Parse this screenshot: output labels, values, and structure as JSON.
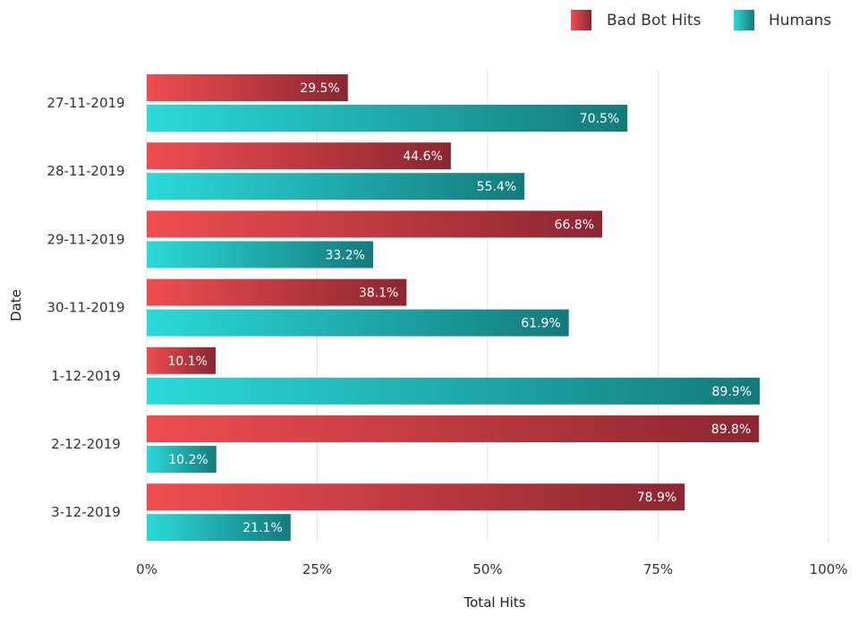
{
  "chart_data": {
    "type": "bar",
    "orientation": "horizontal",
    "title": "",
    "xlabel": "Total Hits",
    "ylabel": "Date",
    "xlim": [
      0,
      100
    ],
    "x_ticks": [
      "0%",
      "25%",
      "50%",
      "75%",
      "100%"
    ],
    "grid": true,
    "legend_position": "top-right",
    "categories": [
      "27-11-2019",
      "28-11-2019",
      "29-11-2019",
      "30-11-2019",
      "1-12-2019",
      "2-12-2019",
      "3-12-2019"
    ],
    "series": [
      {
        "name": "Bad Bot Hits",
        "values": [
          29.5,
          44.6,
          66.8,
          38.1,
          10.1,
          89.8,
          78.9
        ],
        "labels": [
          "29.5%",
          "44.6%",
          "66.8%",
          "38.1%",
          "10.1%",
          "89.8%",
          "78.9%"
        ],
        "color_start": "#ef4e50",
        "color_end": "#8b2630"
      },
      {
        "name": "Humans",
        "values": [
          70.5,
          55.4,
          33.2,
          61.9,
          89.9,
          10.2,
          21.1
        ],
        "labels": [
          "70.5%",
          "55.4%",
          "33.2%",
          "61.9%",
          "89.9%",
          "10.2%",
          "21.1%"
        ],
        "color_start": "#2bdad9",
        "color_end": "#147a7c"
      }
    ]
  }
}
